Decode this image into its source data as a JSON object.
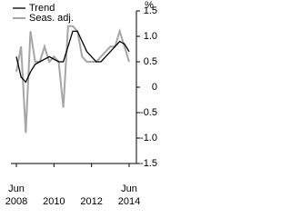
{
  "chart_data": {
    "type": "line",
    "y_label": "%",
    "categories": [
      "Jun 2008",
      null,
      null,
      null,
      null,
      null,
      null,
      null,
      "2010",
      null,
      null,
      null,
      null,
      null,
      null,
      null,
      "2012",
      null,
      null,
      null,
      null,
      null,
      null,
      null,
      "Jun 2014"
    ],
    "series": [
      {
        "name": "Trend",
        "color": "#000000",
        "values": [
          0.6,
          0.2,
          0.1,
          0.3,
          0.45,
          0.5,
          0.55,
          0.6,
          0.55,
          0.5,
          0.5,
          0.8,
          1.1,
          1.1,
          0.9,
          0.7,
          0.6,
          0.5,
          0.5,
          0.6,
          0.7,
          0.8,
          0.9,
          0.85,
          0.7
        ]
      },
      {
        "name": "Seas. adj.",
        "color": "#a6a6a6",
        "values": [
          0.3,
          0.8,
          -0.9,
          1.1,
          0.5,
          0.5,
          0.8,
          0.5,
          0.6,
          0.5,
          -0.4,
          1.2,
          1.2,
          1.1,
          0.6,
          0.5,
          0.5,
          0.5,
          0.6,
          0.7,
          0.8,
          0.8,
          1.1,
          0.8,
          0.5
        ]
      }
    ],
    "ylim": [
      -1.5,
      1.5
    ],
    "yticks": [
      -1.5,
      {
        "value": -1,
        "label": "-1.0"
      },
      -0.5,
      0,
      0.5,
      {
        "value": 1,
        "label": "1.0"
      },
      1.5
    ],
    "legend": "top-left"
  }
}
